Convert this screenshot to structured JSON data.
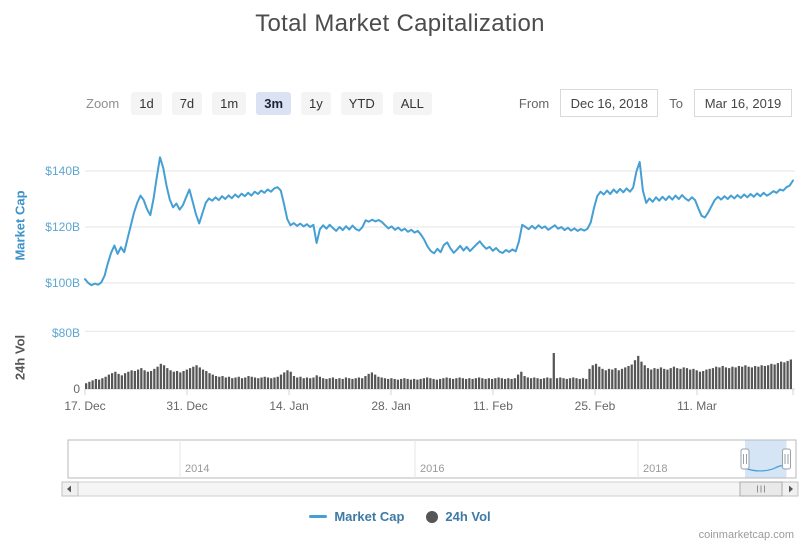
{
  "title": "Total Market Capitalization",
  "attribution": "coinmarketcap.com",
  "controls": {
    "zoom_label": "Zoom",
    "zoom_buttons": [
      {
        "label": "1d",
        "selected": false
      },
      {
        "label": "7d",
        "selected": false
      },
      {
        "label": "1m",
        "selected": false
      },
      {
        "label": "3m",
        "selected": true
      },
      {
        "label": "1y",
        "selected": false
      },
      {
        "label": "YTD",
        "selected": false
      },
      {
        "label": "ALL",
        "selected": false
      }
    ],
    "from_label": "From",
    "from_value": "Dec 16, 2018",
    "to_label": "To",
    "to_value": "Mar 16, 2019"
  },
  "legend": [
    {
      "name": "Market Cap",
      "marker": "line",
      "color": "#459fd4"
    },
    {
      "name": "24h Vol",
      "marker": "circle",
      "color": "#565656"
    }
  ],
  "chart_data": {
    "type": "line+bar",
    "title": "Total Market Capitalization",
    "series": [
      {
        "name": "Market Cap",
        "type": "line",
        "color": "#459fd4",
        "unit": "$B",
        "axis": {
          "title": "Market Cap",
          "ticks": [
            {
              "label": "$140B",
              "value": 140
            },
            {
              "label": "$120B",
              "value": 120
            },
            {
              "label": "$100B",
              "value": 100
            }
          ],
          "range": [
            97,
            147
          ]
        },
        "values": [
          101.4,
          100.0,
          99.2,
          99.8,
          99.4,
          100.2,
          102.6,
          107.0,
          110.8,
          113.4,
          110.4,
          112.8,
          111.0,
          115.6,
          120.4,
          125.0,
          128.6,
          131.2,
          129.6,
          126.4,
          124.2,
          130.0,
          137.8,
          144.9,
          141.0,
          134.6,
          129.8,
          127.0,
          128.4,
          126.2,
          127.8,
          130.6,
          133.4,
          129.0,
          124.6,
          121.3,
          125.0,
          128.6,
          130.2,
          129.4,
          130.6,
          129.6,
          131.0,
          130.0,
          131.3,
          130.3,
          131.6,
          130.6,
          131.9,
          131.0,
          132.2,
          131.2,
          132.6,
          131.8,
          133.0,
          132.2,
          133.4,
          132.6,
          133.8,
          134.2,
          133.0,
          128.2,
          122.8,
          120.6,
          121.4,
          120.4,
          121.2,
          120.2,
          121.0,
          120.0,
          120.8,
          114.3,
          119.2,
          120.6,
          119.4,
          120.8,
          119.6,
          118.6,
          120.0,
          118.9,
          120.3,
          119.1,
          120.5,
          119.3,
          118.7,
          119.9,
          122.4,
          121.9,
          122.6,
          122.0,
          122.5,
          121.8,
          120.6,
          119.5,
          120.2,
          119.0,
          119.8,
          118.7,
          119.4,
          118.3,
          119.0,
          118.0,
          118.6,
          117.2,
          115.4,
          113.0,
          111.4,
          110.6,
          112.2,
          111.0,
          113.6,
          114.5,
          112.4,
          110.8,
          111.9,
          113.3,
          111.6,
          112.9,
          111.4,
          112.6,
          113.8,
          114.9,
          113.4,
          112.2,
          112.9,
          111.5,
          112.5,
          111.2,
          110.7,
          111.8,
          111.1,
          112.0,
          111.3,
          114.8,
          120.8,
          120.0,
          119.2,
          120.4,
          119.4,
          120.6,
          119.6,
          120.2,
          119.0,
          119.8,
          120.6,
          119.4,
          120.0,
          118.9,
          119.7,
          118.7,
          119.5,
          118.6,
          119.3,
          118.7,
          119.4,
          121.6,
          126.8,
          131.0,
          132.6,
          131.6,
          133.0,
          131.8,
          133.4,
          132.2,
          133.6,
          132.4,
          133.8,
          132.6,
          134.0,
          139.8,
          143.2,
          133.0,
          128.6,
          130.2,
          129.0,
          130.6,
          129.4,
          130.8,
          129.6,
          131.0,
          129.8,
          131.2,
          130.0,
          131.4,
          130.2,
          129.4,
          130.6,
          129.6,
          126.6,
          124.0,
          123.4,
          125.2,
          127.4,
          129.6,
          130.8,
          129.8,
          131.0,
          130.0,
          131.2,
          130.2,
          131.4,
          130.4,
          131.6,
          130.6,
          131.8,
          130.8,
          132.0,
          131.0,
          132.2,
          131.2,
          131.9,
          132.8,
          132.2,
          133.4,
          133.0,
          134.2,
          134.8,
          136.6
        ]
      },
      {
        "name": "24h Vol",
        "type": "bar",
        "color": "#565656",
        "unit": "$B",
        "axis": {
          "title": "24h Vol",
          "ticks": [
            {
              "label": "$80B",
              "value": 80
            },
            {
              "label": "0",
              "value": 0
            }
          ],
          "range": [
            0,
            80
          ]
        },
        "values": [
          8,
          10,
          12,
          14,
          13,
          15,
          17,
          20,
          22,
          24,
          21,
          19,
          22,
          24,
          26,
          25,
          27,
          29,
          26,
          24,
          25,
          28,
          31,
          35,
          33,
          29,
          26,
          24,
          25,
          23,
          25,
          27,
          29,
          31,
          33,
          30,
          27,
          25,
          22,
          20,
          18,
          17,
          18,
          16,
          17,
          15,
          16,
          17,
          15,
          16,
          18,
          17,
          16,
          15,
          16,
          17,
          16,
          15,
          16,
          17,
          20,
          23,
          26,
          24,
          18,
          16,
          17,
          15,
          16,
          15,
          16,
          19,
          17,
          15,
          14,
          15,
          16,
          14,
          15,
          14,
          16,
          15,
          14,
          15,
          16,
          15,
          18,
          21,
          23,
          20,
          17,
          16,
          15,
          14,
          15,
          14,
          13,
          14,
          15,
          14,
          13,
          14,
          13,
          14,
          15,
          16,
          15,
          14,
          13,
          14,
          15,
          16,
          15,
          14,
          15,
          16,
          15,
          14,
          15,
          14,
          15,
          16,
          15,
          14,
          15,
          14,
          15,
          16,
          15,
          14,
          15,
          14,
          15,
          20,
          24,
          18,
          16,
          15,
          16,
          15,
          14,
          15,
          16,
          15,
          50,
          15,
          16,
          15,
          14,
          15,
          16,
          15,
          14,
          15,
          14,
          28,
          33,
          35,
          31,
          28,
          26,
          28,
          27,
          29,
          26,
          28,
          30,
          32,
          34,
          40,
          46,
          38,
          33,
          29,
          27,
          29,
          28,
          30,
          28,
          27,
          29,
          31,
          29,
          28,
          30,
          29,
          27,
          28,
          26,
          24,
          25,
          27,
          28,
          29,
          31,
          30,
          32,
          30,
          29,
          31,
          30,
          32,
          31,
          33,
          31,
          30,
          32,
          31,
          33,
          32,
          33,
          35,
          34,
          36,
          38,
          37,
          39,
          41
        ]
      }
    ],
    "x_axis": {
      "tick_labels": [
        "17. Dec",
        "31. Dec",
        "14. Jan",
        "28. Jan",
        "11. Feb",
        "25. Feb",
        "11. Mar"
      ]
    },
    "navigator": {
      "year_labels": [
        "2014",
        "2016",
        "2018"
      ],
      "selection_start_frac": 0.93,
      "selection_end_frac": 0.987
    }
  }
}
